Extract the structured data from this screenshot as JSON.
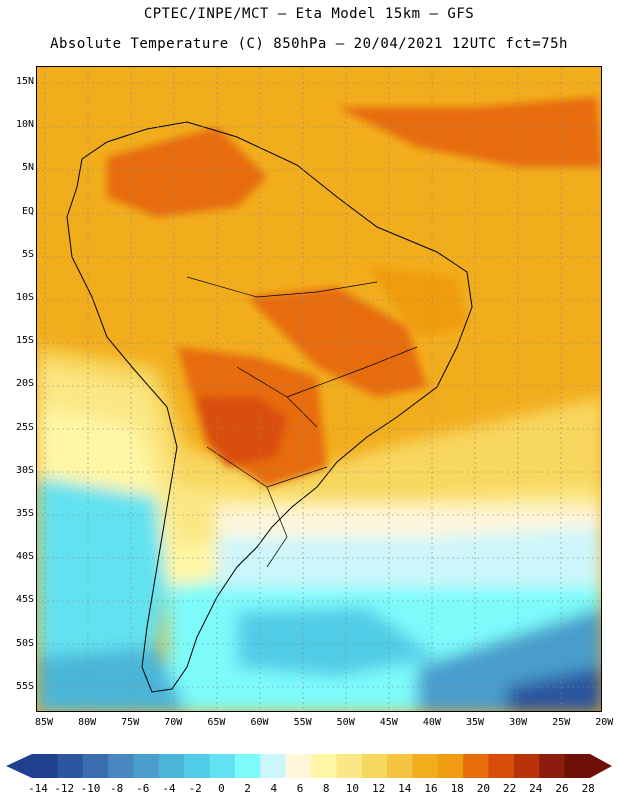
{
  "title_line1": "CPTEC/INPE/MCT –  Eta Model 15km – GFS",
  "title_line2": "Absolute Temperature (C) 850hPa – 20/04/2021 12UTC fct=75h",
  "lat_labels": [
    "15N",
    "10N",
    "5N",
    "EQ",
    "5S",
    "10S",
    "15S",
    "20S",
    "25S",
    "30S",
    "35S",
    "40S",
    "45S",
    "50S",
    "55S"
  ],
  "lon_labels": [
    "85W",
    "80W",
    "75W",
    "70W",
    "65W",
    "60W",
    "55W",
    "50W",
    "45W",
    "40W",
    "35W",
    "30W",
    "25W",
    "20W"
  ],
  "colorbar": {
    "labels": [
      "-14",
      "-12",
      "-10",
      "-8",
      "-6",
      "-4",
      "-2",
      "0",
      "2",
      "4",
      "6",
      "8",
      "10",
      "12",
      "14",
      "16",
      "18",
      "20",
      "22",
      "24",
      "26",
      "28"
    ],
    "colors": [
      "#1f3f8f",
      "#2c559f",
      "#3a6cae",
      "#4a86bf",
      "#4a9dcc",
      "#4bb5d8",
      "#51cce6",
      "#62e2f0",
      "#7dfbfb",
      "#cdf6fb",
      "#fff6dc",
      "#fff7a6",
      "#fbe885",
      "#f8d75f",
      "#f4c342",
      "#f2ad1d",
      "#ef9c10",
      "#e76c0c",
      "#d94d0a",
      "#b93308",
      "#8c1d0e",
      "#6e1008"
    ]
  }
}
